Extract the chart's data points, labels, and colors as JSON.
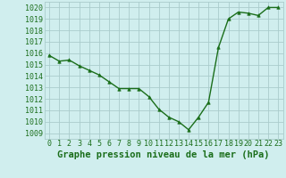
{
  "x": [
    0,
    1,
    2,
    3,
    4,
    5,
    6,
    7,
    8,
    9,
    10,
    11,
    12,
    13,
    14,
    15,
    16,
    17,
    18,
    19,
    20,
    21,
    22,
    23
  ],
  "y": [
    1015.8,
    1015.3,
    1015.4,
    1014.9,
    1014.5,
    1014.1,
    1013.5,
    1012.9,
    1012.9,
    1012.9,
    1012.2,
    1011.1,
    1010.4,
    1010.0,
    1009.3,
    1010.4,
    1011.7,
    1016.5,
    1019.0,
    1019.6,
    1019.5,
    1019.3,
    1020.0,
    1020.0
  ],
  "line_color": "#1a6e1a",
  "marker_color": "#1a6e1a",
  "bg_color": "#d0eeee",
  "grid_color": "#aacccc",
  "xlabel": "Graphe pression niveau de la mer (hPa)",
  "ylim_min": 1008.5,
  "ylim_max": 1020.5,
  "xlim_min": -0.5,
  "xlim_max": 23.5,
  "xlabel_fontsize": 7.5,
  "tick_fontsize": 6,
  "line_width": 1.0,
  "marker_size": 2.5
}
